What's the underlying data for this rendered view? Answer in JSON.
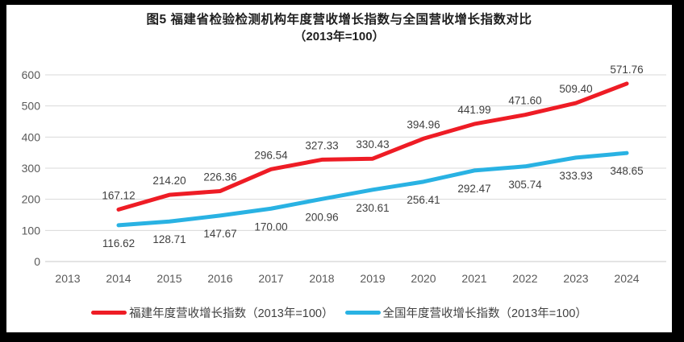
{
  "title": {
    "line1": "图5  福建省检验检测机构年度营收增长指数与全国营收增长指数对比",
    "line2": "（2013年=100）"
  },
  "chart_data": {
    "type": "line",
    "title": "图5  福建省检验检测机构年度营收增长指数与全国营收增长指数对比",
    "subtitle": "（2013年=100）",
    "x": [
      2013,
      2014,
      2015,
      2016,
      2017,
      2018,
      2019,
      2020,
      2021,
      2022,
      2023,
      2024
    ],
    "xlabel": "",
    "ylabel": "",
    "ylim": [
      0,
      600
    ],
    "yticks": [
      0,
      100,
      200,
      300,
      400,
      500,
      600
    ],
    "grid": true,
    "legend_position": "bottom",
    "series": [
      {
        "key": "fujian",
        "name": "福建年度营收增长指数（2013年=100）",
        "color": "#ee1c25",
        "start_index": 1,
        "label_position": "above",
        "values": [
          167.12,
          214.2,
          226.36,
          296.54,
          327.33,
          330.43,
          394.96,
          441.99,
          471.6,
          509.4,
          571.76
        ]
      },
      {
        "key": "national",
        "name": "全国年度营收增长指数（2013年=100）",
        "color": "#29b2e3",
        "start_index": 1,
        "label_position": "below",
        "values": [
          116.62,
          128.71,
          147.67,
          170.0,
          200.96,
          230.61,
          256.41,
          292.47,
          305.74,
          333.93,
          348.65
        ]
      }
    ],
    "colors": {
      "gridline": "#d9d9d9",
      "baseline": "#c9c9c9",
      "axis_text": "#595959",
      "label_text": "#3f3f3f"
    }
  }
}
